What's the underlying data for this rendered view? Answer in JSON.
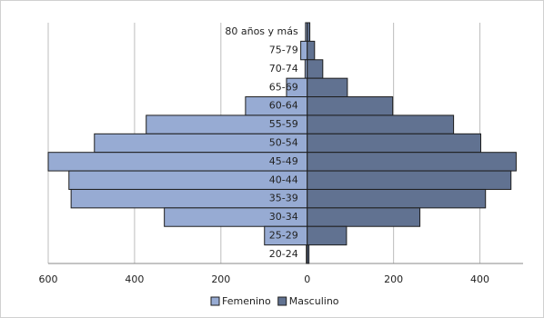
{
  "chart_data": {
    "type": "pyramid",
    "categories": [
      "80 años y más",
      "75-79",
      "70-74",
      "65-69",
      "60-64",
      "55-59",
      "50-54",
      "45-49",
      "40-44",
      "35-39",
      "30-34",
      "25-29",
      "20-24"
    ],
    "series": [
      {
        "name": "Femenino",
        "color": "#97abd3",
        "values": [
          -4,
          -15,
          -5,
          -48,
          -143,
          -373,
          -493,
          -600,
          -552,
          -547,
          -331,
          -99,
          -2
        ]
      },
      {
        "name": "Masculino",
        "color": "#617291",
        "values": [
          6,
          17,
          36,
          93,
          198,
          339,
          402,
          484,
          472,
          413,
          261,
          91,
          4
        ]
      }
    ],
    "xlim": [
      -600,
      500
    ],
    "xticks": [
      {
        "value": -600,
        "label": "600"
      },
      {
        "value": -400,
        "label": "400"
      },
      {
        "value": -200,
        "label": "200"
      },
      0,
      200,
      400
    ],
    "grid": true,
    "legend": "bottom"
  }
}
